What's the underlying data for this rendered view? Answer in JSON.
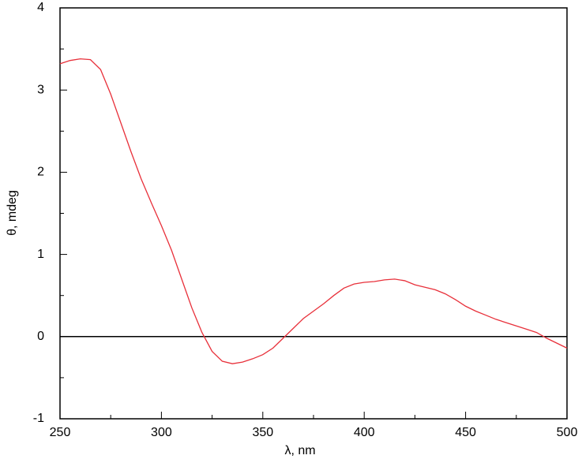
{
  "chart_data": {
    "type": "line",
    "x_label": "λ, nm",
    "y_label": "θ, mdeg",
    "x": [
      250,
      255,
      260,
      265,
      270,
      275,
      280,
      285,
      290,
      295,
      300,
      305,
      310,
      315,
      320,
      325,
      330,
      335,
      340,
      345,
      350,
      355,
      360,
      365,
      370,
      375,
      380,
      385,
      390,
      395,
      400,
      405,
      410,
      415,
      420,
      425,
      430,
      435,
      440,
      445,
      450,
      455,
      460,
      465,
      470,
      475,
      480,
      485,
      490,
      495,
      500
    ],
    "series": [
      {
        "color": "#e8303a",
        "values": [
          3.32,
          3.36,
          3.38,
          3.37,
          3.25,
          2.95,
          2.6,
          2.25,
          1.92,
          1.63,
          1.35,
          1.05,
          0.7,
          0.35,
          0.05,
          -0.18,
          -0.3,
          -0.33,
          -0.31,
          -0.27,
          -0.22,
          -0.14,
          -0.02,
          0.1,
          0.22,
          0.31,
          0.4,
          0.5,
          0.59,
          0.64,
          0.66,
          0.67,
          0.69,
          0.7,
          0.68,
          0.63,
          0.6,
          0.57,
          0.52,
          0.45,
          0.37,
          0.31,
          0.26,
          0.21,
          0.17,
          0.13,
          0.09,
          0.05,
          -0.02,
          -0.08,
          -0.14
        ]
      }
    ],
    "reference_line": 0,
    "xlim": [
      250,
      500
    ],
    "ylim": [
      -1,
      4
    ],
    "xticks": [
      250,
      300,
      350,
      400,
      450,
      500
    ],
    "yticks": [
      -1,
      0,
      1,
      2,
      3,
      4
    ],
    "xminorticks": [
      275,
      325,
      375,
      425,
      475
    ],
    "yminorticks": [
      -0.5,
      0.5,
      1.5,
      2.5,
      3.5
    ]
  }
}
